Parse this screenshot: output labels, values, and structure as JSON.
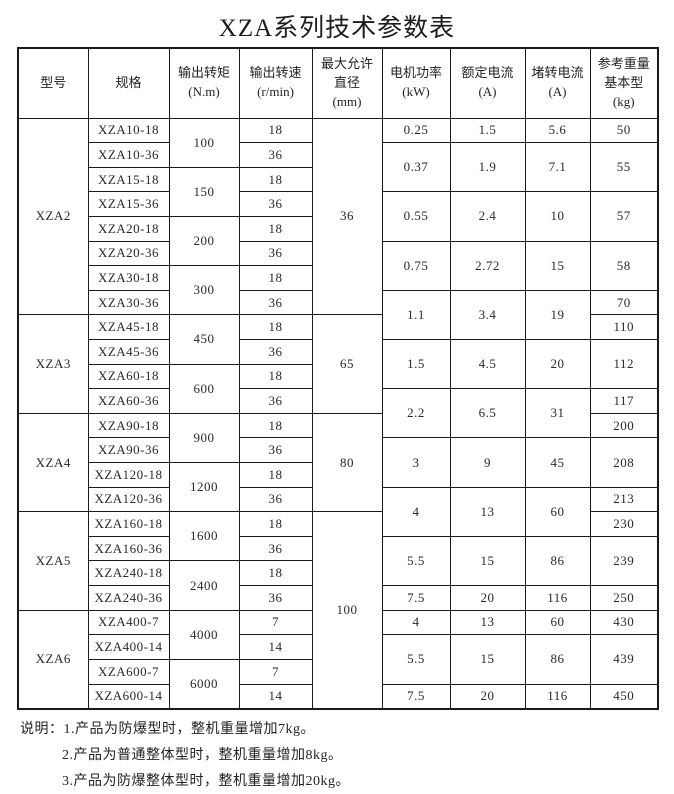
{
  "page": {
    "title": "XZA系列技术参数表"
  },
  "colors": {
    "background": "#ffffff",
    "border": "#1a1a1a",
    "text": "#232323"
  },
  "table": {
    "headers": [
      {
        "lines": [
          "型号"
        ]
      },
      {
        "lines": [
          "规格"
        ]
      },
      {
        "lines": [
          "输出转矩",
          "(N.m)"
        ]
      },
      {
        "lines": [
          "输出转速",
          "(r/min)"
        ]
      },
      {
        "lines": [
          "最大允许",
          "直径",
          "(mm)"
        ]
      },
      {
        "lines": [
          "电机功率",
          "(kW)"
        ]
      },
      {
        "lines": [
          "额定电流",
          "(A)"
        ]
      },
      {
        "lines": [
          "堵转电流",
          "(A)"
        ]
      },
      {
        "lines": [
          "参考重量",
          "基本型",
          "(kg)"
        ]
      }
    ],
    "rows": [
      [
        {
          "t": "XZA2",
          "rs": 8
        },
        {
          "t": "XZA10-18"
        },
        {
          "t": "100",
          "rs": 2
        },
        {
          "t": "18"
        },
        {
          "t": "36",
          "rs": 8
        },
        {
          "t": "0.25"
        },
        {
          "t": "1.5"
        },
        {
          "t": "5.6"
        },
        {
          "t": "50"
        }
      ],
      [
        {
          "t": "XZA10-36"
        },
        {
          "t": "36"
        },
        {
          "t": "0.37",
          "rs": 2
        },
        {
          "t": "1.9",
          "rs": 2
        },
        {
          "t": "7.1",
          "rs": 2
        },
        {
          "t": "55",
          "rs": 2
        }
      ],
      [
        {
          "t": "XZA15-18"
        },
        {
          "t": "150",
          "rs": 2
        },
        {
          "t": "18"
        }
      ],
      [
        {
          "t": "XZA15-36"
        },
        {
          "t": "36"
        },
        {
          "t": "0.55",
          "rs": 2
        },
        {
          "t": "2.4",
          "rs": 2
        },
        {
          "t": "10",
          "rs": 2
        },
        {
          "t": "57",
          "rs": 2
        }
      ],
      [
        {
          "t": "XZA20-18"
        },
        {
          "t": "200",
          "rs": 2
        },
        {
          "t": "18"
        }
      ],
      [
        {
          "t": "XZA20-36"
        },
        {
          "t": "36"
        },
        {
          "t": "0.75",
          "rs": 2
        },
        {
          "t": "2.72",
          "rs": 2
        },
        {
          "t": "15",
          "rs": 2
        },
        {
          "t": "58",
          "rs": 2
        }
      ],
      [
        {
          "t": "XZA30-18"
        },
        {
          "t": "300",
          "rs": 2
        },
        {
          "t": "18"
        }
      ],
      [
        {
          "t": "XZA30-36"
        },
        {
          "t": "36"
        },
        {
          "t": "1.1",
          "rs": 2
        },
        {
          "t": "3.4",
          "rs": 2
        },
        {
          "t": "19",
          "rs": 2
        },
        {
          "t": "70"
        }
      ],
      [
        {
          "t": "XZA3",
          "rs": 4
        },
        {
          "t": "XZA45-18"
        },
        {
          "t": "450",
          "rs": 2
        },
        {
          "t": "18"
        },
        {
          "t": "65",
          "rs": 4
        },
        {
          "t": "110"
        }
      ],
      [
        {
          "t": "XZA45-36"
        },
        {
          "t": "36"
        },
        {
          "t": "1.5",
          "rs": 2
        },
        {
          "t": "4.5",
          "rs": 2
        },
        {
          "t": "20",
          "rs": 2
        },
        {
          "t": "112",
          "rs": 2
        }
      ],
      [
        {
          "t": "XZA60-18"
        },
        {
          "t": "600",
          "rs": 2
        },
        {
          "t": "18"
        }
      ],
      [
        {
          "t": "XZA60-36"
        },
        {
          "t": "36"
        },
        {
          "t": "2.2",
          "rs": 2
        },
        {
          "t": "6.5",
          "rs": 2
        },
        {
          "t": "31",
          "rs": 2
        },
        {
          "t": "117"
        }
      ],
      [
        {
          "t": "XZA4",
          "rs": 4
        },
        {
          "t": "XZA90-18"
        },
        {
          "t": "900",
          "rs": 2
        },
        {
          "t": "18"
        },
        {
          "t": "80",
          "rs": 4
        },
        {
          "t": "200"
        }
      ],
      [
        {
          "t": "XZA90-36"
        },
        {
          "t": "36"
        },
        {
          "t": "3",
          "rs": 2
        },
        {
          "t": "9",
          "rs": 2
        },
        {
          "t": "45",
          "rs": 2
        },
        {
          "t": "208",
          "rs": 2
        }
      ],
      [
        {
          "t": "XZA120-18"
        },
        {
          "t": "1200",
          "rs": 2
        },
        {
          "t": "18"
        }
      ],
      [
        {
          "t": "XZA120-36"
        },
        {
          "t": "36"
        },
        {
          "t": "4",
          "rs": 2
        },
        {
          "t": "13",
          "rs": 2
        },
        {
          "t": "60",
          "rs": 2
        },
        {
          "t": "213"
        }
      ],
      [
        {
          "t": "XZA5",
          "rs": 4
        },
        {
          "t": "XZA160-18"
        },
        {
          "t": "1600",
          "rs": 2
        },
        {
          "t": "18"
        },
        {
          "t": "100",
          "rs": 8
        },
        {
          "t": "230"
        }
      ],
      [
        {
          "t": "XZA160-36"
        },
        {
          "t": "36"
        },
        {
          "t": "5.5",
          "rs": 2
        },
        {
          "t": "15",
          "rs": 2
        },
        {
          "t": "86",
          "rs": 2
        },
        {
          "t": "239",
          "rs": 2
        }
      ],
      [
        {
          "t": "XZA240-18"
        },
        {
          "t": "2400",
          "rs": 2
        },
        {
          "t": "18"
        }
      ],
      [
        {
          "t": "XZA240-36"
        },
        {
          "t": "36"
        },
        {
          "t": "7.5"
        },
        {
          "t": "20"
        },
        {
          "t": "116"
        },
        {
          "t": "250"
        }
      ],
      [
        {
          "t": "XZA6",
          "rs": 4
        },
        {
          "t": "XZA400-7"
        },
        {
          "t": "4000",
          "rs": 2
        },
        {
          "t": "7"
        },
        {
          "t": "4"
        },
        {
          "t": "13"
        },
        {
          "t": "60"
        },
        {
          "t": "430"
        }
      ],
      [
        {
          "t": "XZA400-14"
        },
        {
          "t": "14"
        },
        {
          "t": "5.5",
          "rs": 2
        },
        {
          "t": "15",
          "rs": 2
        },
        {
          "t": "86",
          "rs": 2
        },
        {
          "t": "439",
          "rs": 2
        }
      ],
      [
        {
          "t": "XZA600-7"
        },
        {
          "t": "6000",
          "rs": 2
        },
        {
          "t": "7"
        }
      ],
      [
        {
          "t": "XZA600-14"
        },
        {
          "t": "14"
        },
        {
          "t": "7.5"
        },
        {
          "t": "20"
        },
        {
          "t": "116"
        },
        {
          "t": "450"
        }
      ]
    ]
  },
  "notes": {
    "label": "说明：",
    "items": [
      "1.产品为防爆型时，整机重量增加7kg。",
      "2.产品为普通整体型时，整机重量增加8kg。",
      "3.产品为防爆整体型时，整机重量增加20kg。"
    ]
  }
}
